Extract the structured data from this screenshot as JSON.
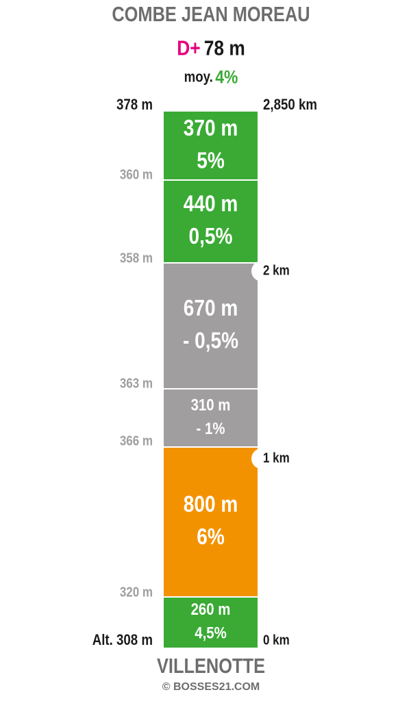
{
  "title": "COMBE JEAN MOREAU",
  "summary": {
    "elevation_gain_label": "D+",
    "elevation_gain": "78 m",
    "average_label": "moy.",
    "average_grade": "4%"
  },
  "segments": [
    {
      "length": "370 m",
      "grade": "5%",
      "color": "#3aaa35"
    },
    {
      "length": "440 m",
      "grade": "0,5%",
      "color": "#3aaa35"
    },
    {
      "length": "670 m",
      "grade": "- 0,5%",
      "color": "#a09e9f"
    },
    {
      "length": "310 m",
      "grade": "- 1%",
      "color": "#a09e9f"
    },
    {
      "length": "800 m",
      "grade": "6%",
      "color": "#f39200"
    },
    {
      "length": "260 m",
      "grade": "4,5%",
      "color": "#3aaa35"
    }
  ],
  "altitudes": [
    "378 m",
    "360 m",
    "358 m",
    "363 m",
    "366 m",
    "320 m",
    "Alt. 308 m"
  ],
  "distances": [
    "2,850 km",
    "2 km",
    "1 km",
    "0 km"
  ],
  "start": "VILLENOTTE",
  "credit": "© BOSSES21.COM"
}
